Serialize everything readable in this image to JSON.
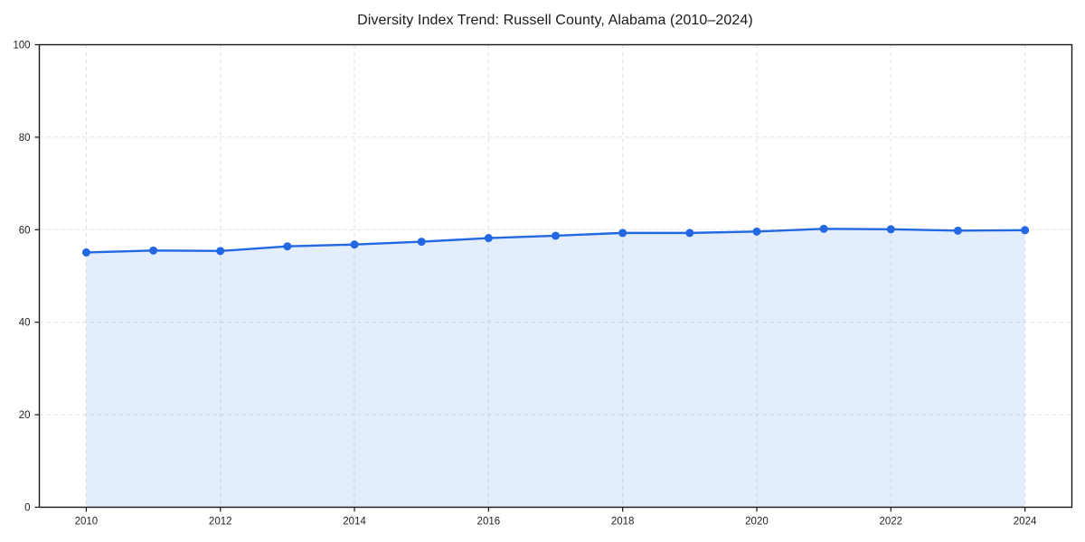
{
  "chart_data": {
    "type": "area",
    "title": "Diversity Index Trend: Russell County, Alabama (2010–2024)",
    "series_name": "Diversity Index",
    "x": [
      2010,
      2011,
      2012,
      2013,
      2014,
      2015,
      2016,
      2017,
      2018,
      2019,
      2020,
      2021,
      2022,
      2023,
      2024
    ],
    "values": [
      55.1,
      55.5,
      55.4,
      56.4,
      56.8,
      57.4,
      58.2,
      58.7,
      59.3,
      59.3,
      59.6,
      60.2,
      60.1,
      59.8,
      59.9
    ],
    "xlabel": "",
    "ylabel": "",
    "xlim": [
      2009.3,
      2024.7
    ],
    "ylim": [
      0,
      100
    ],
    "xticks": [
      2010,
      2012,
      2014,
      2016,
      2018,
      2020,
      2022,
      2024
    ],
    "yticks": [
      0,
      20,
      40,
      60,
      80,
      100
    ],
    "grid": true,
    "grid_style": "dashed",
    "legend": false,
    "line_color": "#2268e3",
    "marker_color": "#2268e3",
    "fill_color": "rgba(34, 104, 227, 0.12)",
    "grid_color": "#e0e0e0",
    "spine_color": "#161616",
    "tick_label_color": "#1f1f1f"
  }
}
